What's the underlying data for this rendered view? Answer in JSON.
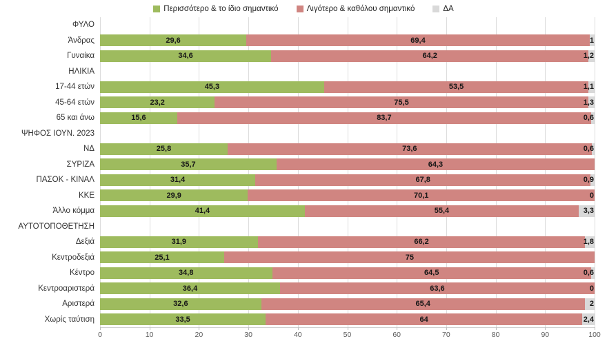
{
  "chart_data": {
    "type": "bar",
    "orientation": "horizontal",
    "stacked": true,
    "title": "",
    "xlabel": "",
    "ylabel": "",
    "xlim": [
      0,
      100
    ],
    "x_ticks": [
      "0",
      "10",
      "20",
      "30",
      "40",
      "50",
      "60",
      "70",
      "80",
      "90",
      "100"
    ],
    "grid": true,
    "legend_position": "top",
    "colors": {
      "green": "#9EBB5E",
      "red": "#D08581",
      "gray": "#D9D9D9",
      "gridline": "#DCDCDC",
      "axis_text": "#595959",
      "label_text": "#333333",
      "value_text": "#171717"
    },
    "series": [
      {
        "name": "Περισσότερο & το ίδιο σημαντικό",
        "key": "green",
        "color": "#9EBB5E"
      },
      {
        "name": "Λιγότερο & καθόλου σημαντικό",
        "key": "red",
        "color": "#D08581"
      },
      {
        "name": "ΔΑ",
        "key": "da",
        "color": "#D9D9D9"
      }
    ],
    "rows": [
      {
        "label": "ΦΥΛΟ",
        "header": true
      },
      {
        "label": "Άνδρας",
        "green": 29.6,
        "red": 69.4,
        "da": 1.0,
        "green_label": "29,6",
        "red_label": "69,4",
        "da_label": "1"
      },
      {
        "label": "Γυναίκα",
        "green": 34.6,
        "red": 64.2,
        "da": 1.2,
        "green_label": "34,6",
        "red_label": "64,2",
        "da_label": "1,2"
      },
      {
        "label": "ΗΛΙΚΙΑ",
        "header": true
      },
      {
        "label": "17-44 ετών",
        "green": 45.3,
        "red": 53.5,
        "da": 1.1,
        "green_label": "45,3",
        "red_label": "53,5",
        "da_label": "1,1"
      },
      {
        "label": "45-64 ετών",
        "green": 23.2,
        "red": 75.5,
        "da": 1.3,
        "green_label": "23,2",
        "red_label": "75,5",
        "da_label": "1,3"
      },
      {
        "label": "65 και άνω",
        "green": 15.6,
        "red": 83.7,
        "da": 0.6,
        "green_label": "15,6",
        "red_label": "83,7",
        "da_label": "0,6"
      },
      {
        "label": "ΨΗΦΟΣ ΙΟΥΝ. 2023",
        "header": true
      },
      {
        "label": "ΝΔ",
        "green": 25.8,
        "red": 73.6,
        "da": 0.6,
        "green_label": "25,8",
        "red_label": "73,6",
        "da_label": "0,6"
      },
      {
        "label": "ΣΥΡΙΖΑ",
        "green": 35.7,
        "red": 64.3,
        "da": 0,
        "green_label": "35,7",
        "red_label": "64,3",
        "da_label": null
      },
      {
        "label": "ΠΑΣΟΚ - ΚΙΝΑΛ",
        "green": 31.4,
        "red": 67.8,
        "da": 0.9,
        "green_label": "31,4",
        "red_label": "67,8",
        "da_label": "0,9"
      },
      {
        "label": "ΚΚΕ",
        "green": 29.9,
        "red": 70.1,
        "da": 0,
        "green_label": "29,9",
        "red_label": "70,1",
        "da_label": "0"
      },
      {
        "label": "Άλλο κόμμα",
        "green": 41.4,
        "red": 55.4,
        "da": 3.3,
        "green_label": "41,4",
        "red_label": "55,4",
        "da_label": "3,3"
      },
      {
        "label": "ΑΥΤΟΤΟΠΟΘΕΤΗΣΗ",
        "header": true
      },
      {
        "label": "Δεξιά",
        "green": 31.9,
        "red": 66.2,
        "da": 1.8,
        "green_label": "31,9",
        "red_label": "66,2",
        "da_label": "1,8"
      },
      {
        "label": "Κεντροδεξιά",
        "green": 25.1,
        "red": 75.0,
        "da": 0,
        "green_label": "25,1",
        "red_label": "75",
        "da_label": null
      },
      {
        "label": "Κέντρο",
        "green": 34.8,
        "red": 64.5,
        "da": 0.6,
        "green_label": "34,8",
        "red_label": "64,5",
        "da_label": "0,6"
      },
      {
        "label": "Κεντροαριστερά",
        "green": 36.4,
        "red": 63.6,
        "da": 0,
        "green_label": "36,4",
        "red_label": "63,6",
        "da_label": "0"
      },
      {
        "label": "Αριστερά",
        "green": 32.6,
        "red": 65.4,
        "da": 2.0,
        "green_label": "32,6",
        "red_label": "65,4",
        "da_label": "2"
      },
      {
        "label": "Χωρίς ταύτιση",
        "green": 33.5,
        "red": 64.0,
        "da": 2.4,
        "green_label": "33,5",
        "red_label": "64",
        "da_label": "2,4"
      }
    ]
  }
}
